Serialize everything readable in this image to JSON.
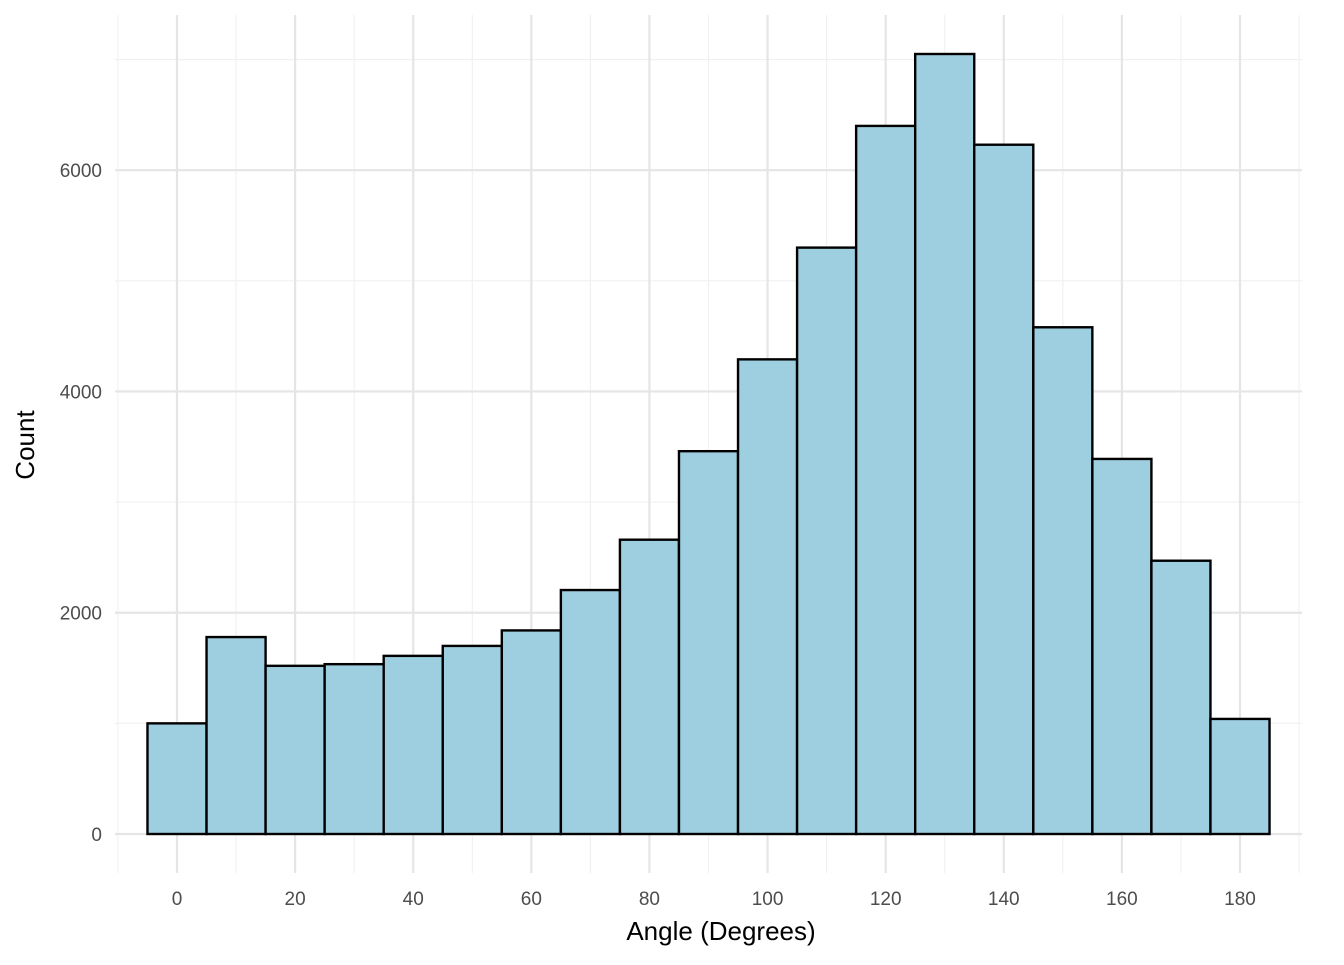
{
  "chart_data": {
    "type": "bar",
    "histogram": true,
    "bin_width": 10,
    "bins": [
      {
        "x_start": -5,
        "x_end": 5,
        "value": 1000
      },
      {
        "x_start": 5,
        "x_end": 15,
        "value": 1780
      },
      {
        "x_start": 15,
        "x_end": 25,
        "value": 1520
      },
      {
        "x_start": 25,
        "x_end": 35,
        "value": 1535
      },
      {
        "x_start": 35,
        "x_end": 45,
        "value": 1610
      },
      {
        "x_start": 45,
        "x_end": 55,
        "value": 1700
      },
      {
        "x_start": 55,
        "x_end": 65,
        "value": 1840
      },
      {
        "x_start": 65,
        "x_end": 75,
        "value": 2205
      },
      {
        "x_start": 75,
        "x_end": 85,
        "value": 2660
      },
      {
        "x_start": 85,
        "x_end": 95,
        "value": 3460
      },
      {
        "x_start": 95,
        "x_end": 105,
        "value": 4290
      },
      {
        "x_start": 105,
        "x_end": 115,
        "value": 5300
      },
      {
        "x_start": 115,
        "x_end": 125,
        "value": 6400
      },
      {
        "x_start": 125,
        "x_end": 135,
        "value": 7050
      },
      {
        "x_start": 135,
        "x_end": 145,
        "value": 6230
      },
      {
        "x_start": 145,
        "x_end": 155,
        "value": 4580
      },
      {
        "x_start": 155,
        "x_end": 165,
        "value": 3390
      },
      {
        "x_start": 165,
        "x_end": 175,
        "value": 2470
      },
      {
        "x_start": 175,
        "x_end": 185,
        "value": 1040
      }
    ],
    "title": "",
    "xlabel": "Angle (Degrees)",
    "ylabel": "Count",
    "xlim": [
      -10.5,
      190.5
    ],
    "ylim": [
      -352.5,
      7402.5
    ],
    "x_ticks": [
      0,
      20,
      40,
      60,
      80,
      100,
      120,
      140,
      160,
      180
    ],
    "x_tick_labels": [
      "0",
      "20",
      "40",
      "60",
      "80",
      "100",
      "120",
      "140",
      "160",
      "180"
    ],
    "y_ticks": [
      0,
      2000,
      4000,
      6000
    ],
    "y_tick_labels": [
      "0",
      "2000",
      "4000",
      "6000"
    ],
    "x_minor_ticks": [
      -10,
      10,
      30,
      50,
      70,
      90,
      110,
      130,
      150,
      170,
      190
    ],
    "y_minor_ticks": [
      1000,
      3000,
      5000,
      7000
    ],
    "grid": true,
    "legend": "none",
    "colors": {
      "bar_fill": "#9ecfe0",
      "bar_outline": "#000000",
      "background": "#ffffff"
    }
  }
}
